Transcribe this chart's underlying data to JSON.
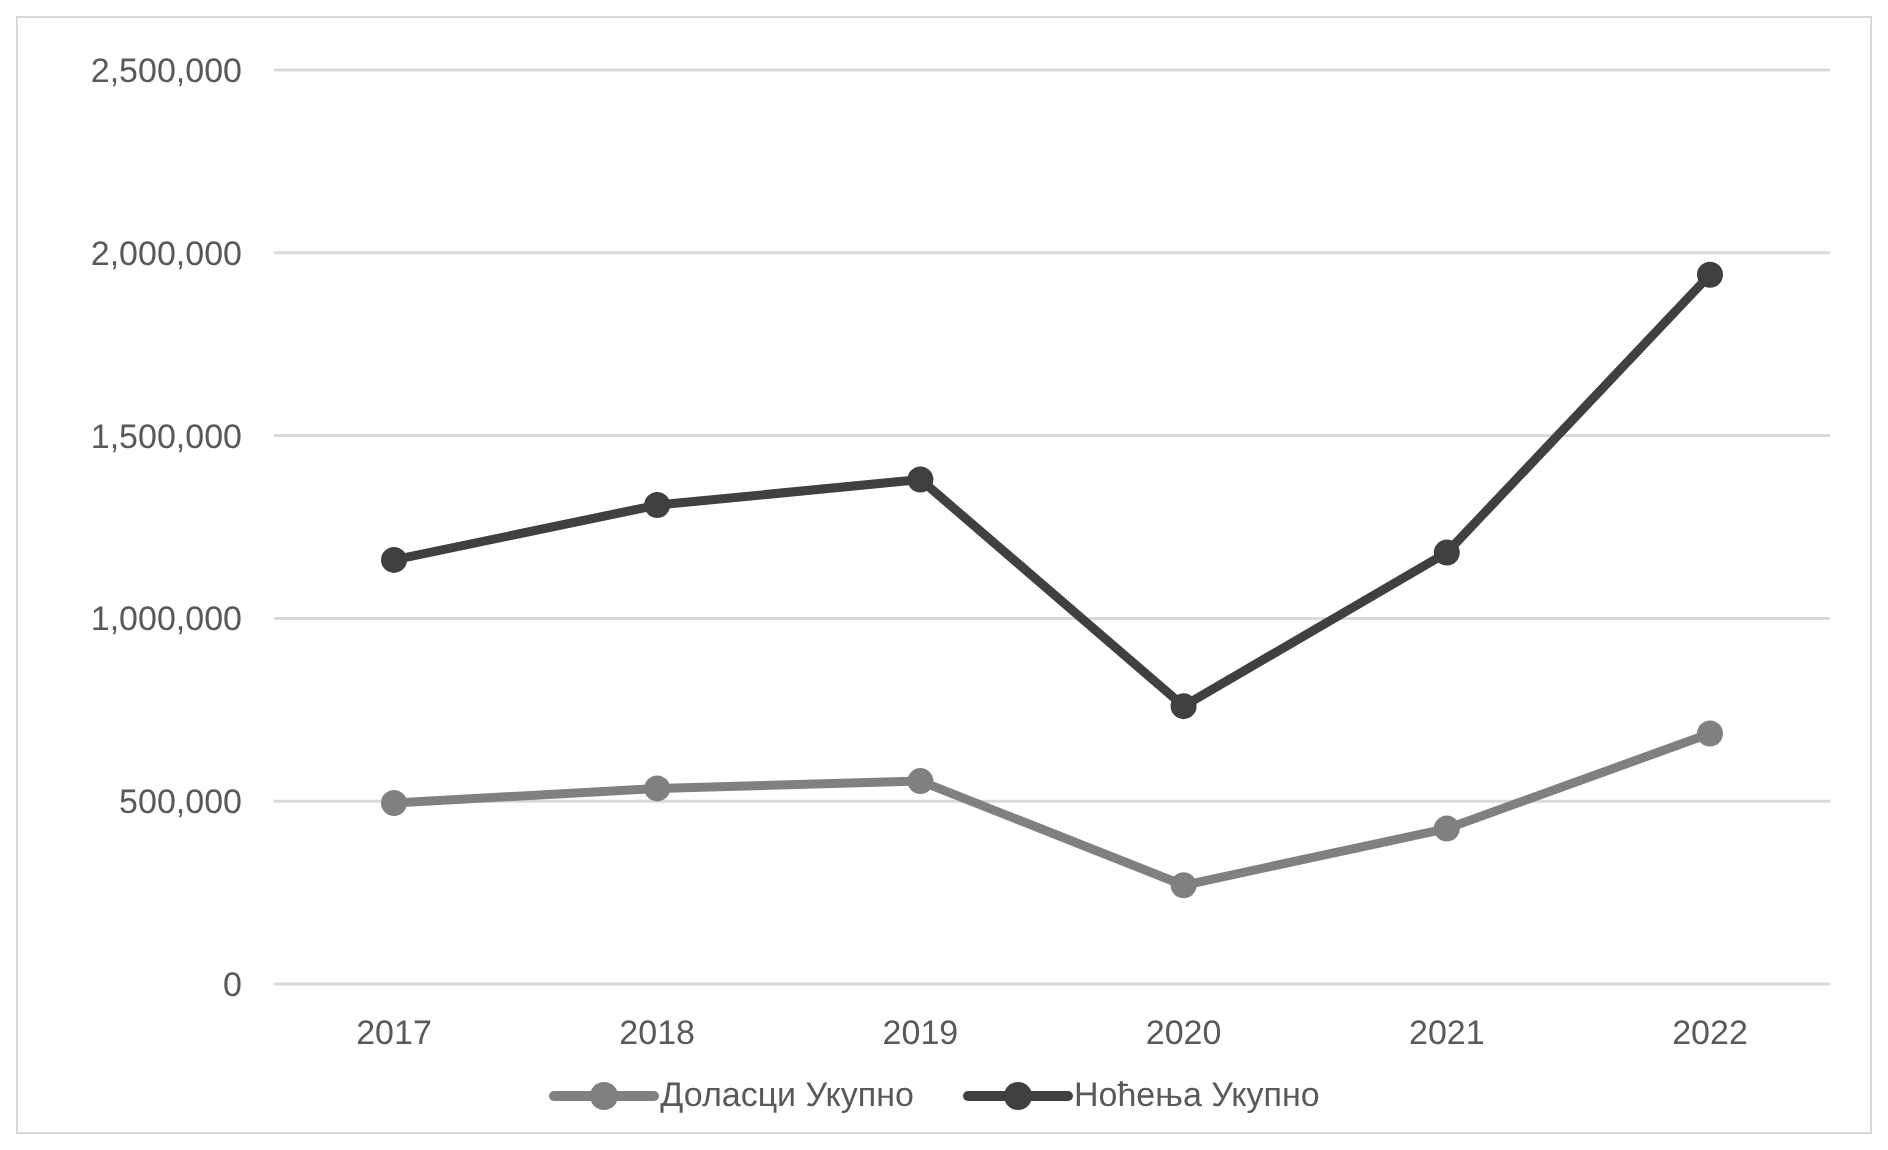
{
  "chart_data": {
    "type": "line",
    "categories": [
      "2017",
      "2018",
      "2019",
      "2020",
      "2021",
      "2022"
    ],
    "series": [
      {
        "name": "Доласци Укупно",
        "color": "#808080",
        "values": [
          495000,
          535000,
          555000,
          270000,
          425000,
          685000
        ]
      },
      {
        "name": "Ноћења Укупно",
        "color": "#404040",
        "values": [
          1160000,
          1310000,
          1380000,
          760000,
          1180000,
          1940000
        ]
      }
    ],
    "ylim": [
      0,
      2500000
    ],
    "yticks": [
      0,
      {
        "value": 500000,
        "label": "500,000"
      },
      {
        "value": 1000000,
        "label": "1,000,000"
      },
      {
        "value": 1500000,
        "label": "1,500,000"
      },
      {
        "value": 2000000,
        "label": "2,000,000"
      },
      {
        "value": 2500000,
        "label": "2,500,000"
      }
    ],
    "grid": "y",
    "legend": "bottom",
    "marker": "circle",
    "line_style": "solid"
  }
}
